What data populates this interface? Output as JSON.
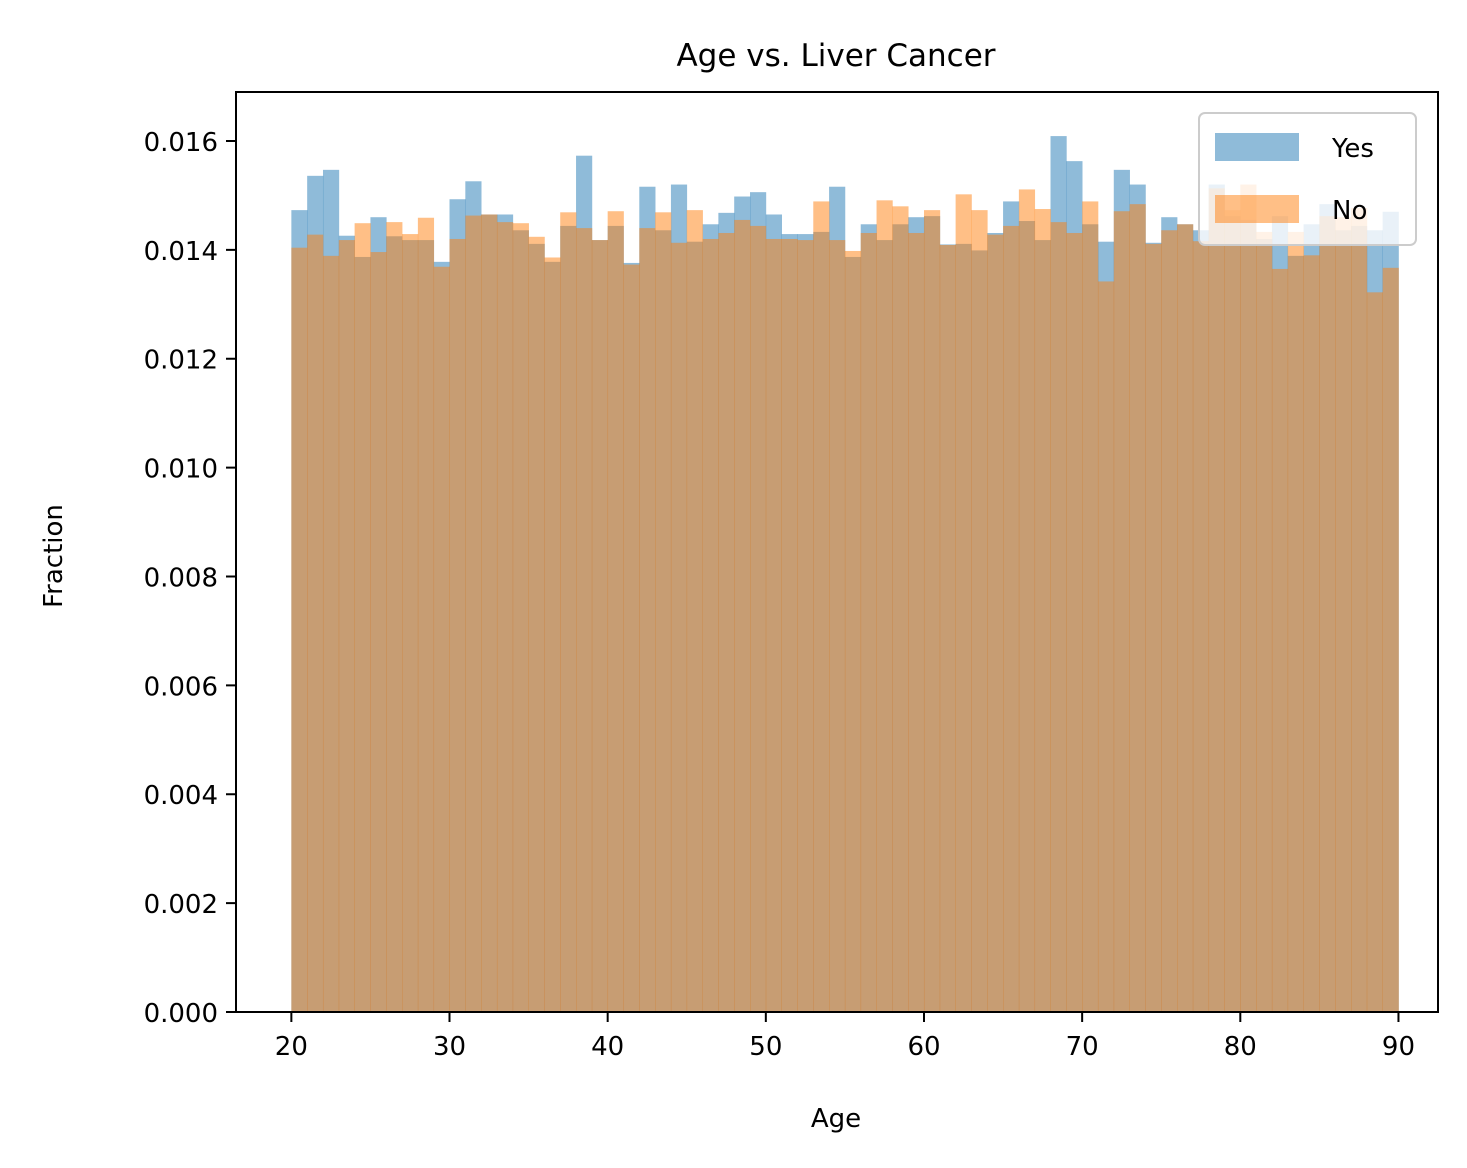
{
  "chart_data": {
    "type": "bar",
    "subtype": "overlapping-histogram",
    "title": "Age vs. Liver Cancer",
    "xlabel": "Age",
    "ylabel": "Fraction",
    "xlim": [
      16.5,
      92.5
    ],
    "ylim": [
      0,
      0.0169
    ],
    "x_ticks": [
      20,
      30,
      40,
      50,
      60,
      70,
      80,
      90
    ],
    "x_tick_labels": [
      "20",
      "30",
      "40",
      "50",
      "60",
      "70",
      "80",
      "90"
    ],
    "y_ticks": [
      0,
      0.002,
      0.004,
      0.006,
      0.008,
      0.01,
      0.012,
      0.014,
      0.016
    ],
    "y_tick_labels": [
      "0.000",
      "0.002",
      "0.004",
      "0.006",
      "0.008",
      "0.010",
      "0.012",
      "0.014",
      "0.016"
    ],
    "bin_start": 20,
    "bin_width": 1,
    "legend_position": "upper-right",
    "grid": false,
    "series": [
      {
        "name": "Yes",
        "color": "#1f77b4",
        "alpha": 0.5,
        "values": [
          0.01473,
          0.01536,
          0.01547,
          0.01426,
          0.01387,
          0.0146,
          0.01425,
          0.01418,
          0.01418,
          0.01378,
          0.01493,
          0.01526,
          0.01465,
          0.01465,
          0.01436,
          0.01411,
          0.01378,
          0.01444,
          0.01573,
          0.01418,
          0.01444,
          0.01376,
          0.01516,
          0.01436,
          0.0152,
          0.01415,
          0.01447,
          0.01468,
          0.01498,
          0.01506,
          0.01465,
          0.01429,
          0.01429,
          0.01433,
          0.01516,
          0.01387,
          0.01447,
          0.01418,
          0.01447,
          0.0146,
          0.01462,
          0.0141,
          0.01411,
          0.01399,
          0.01431,
          0.01489,
          0.01453,
          0.01418,
          0.01609,
          0.01563,
          0.01447,
          0.01415,
          0.01547,
          0.0152,
          0.01413,
          0.0146,
          0.01447,
          0.01436,
          0.0152,
          0.01462,
          0.01455,
          0.0142,
          0.01462,
          0.01389,
          0.01447,
          0.01484,
          0.01436,
          0.01444,
          0.01436,
          0.0147
        ]
      },
      {
        "name": "No",
        "color": "#ff7f0e",
        "alpha": 0.5,
        "values": [
          0.01404,
          0.01428,
          0.01389,
          0.01418,
          0.01449,
          0.01396,
          0.01451,
          0.01429,
          0.01459,
          0.01369,
          0.0142,
          0.01463,
          0.01465,
          0.01451,
          0.01449,
          0.01424,
          0.01386,
          0.01469,
          0.0144,
          0.01418,
          0.01471,
          0.01373,
          0.0144,
          0.01469,
          0.01413,
          0.01473,
          0.0142,
          0.01431,
          0.01455,
          0.01444,
          0.0142,
          0.0142,
          0.01418,
          0.01489,
          0.01418,
          0.01398,
          0.01431,
          0.01491,
          0.0148,
          0.01431,
          0.01473,
          0.01409,
          0.01502,
          0.01473,
          0.01428,
          0.01444,
          0.01511,
          0.01475,
          0.01451,
          0.01431,
          0.01489,
          0.01342,
          0.01471,
          0.01484,
          0.01411,
          0.01436,
          0.01447,
          0.01416,
          0.01513,
          0.01473,
          0.0152,
          0.01433,
          0.01365,
          0.01433,
          0.0139,
          0.01462,
          0.0146,
          0.01477,
          0.01322,
          0.01367
        ]
      }
    ]
  }
}
